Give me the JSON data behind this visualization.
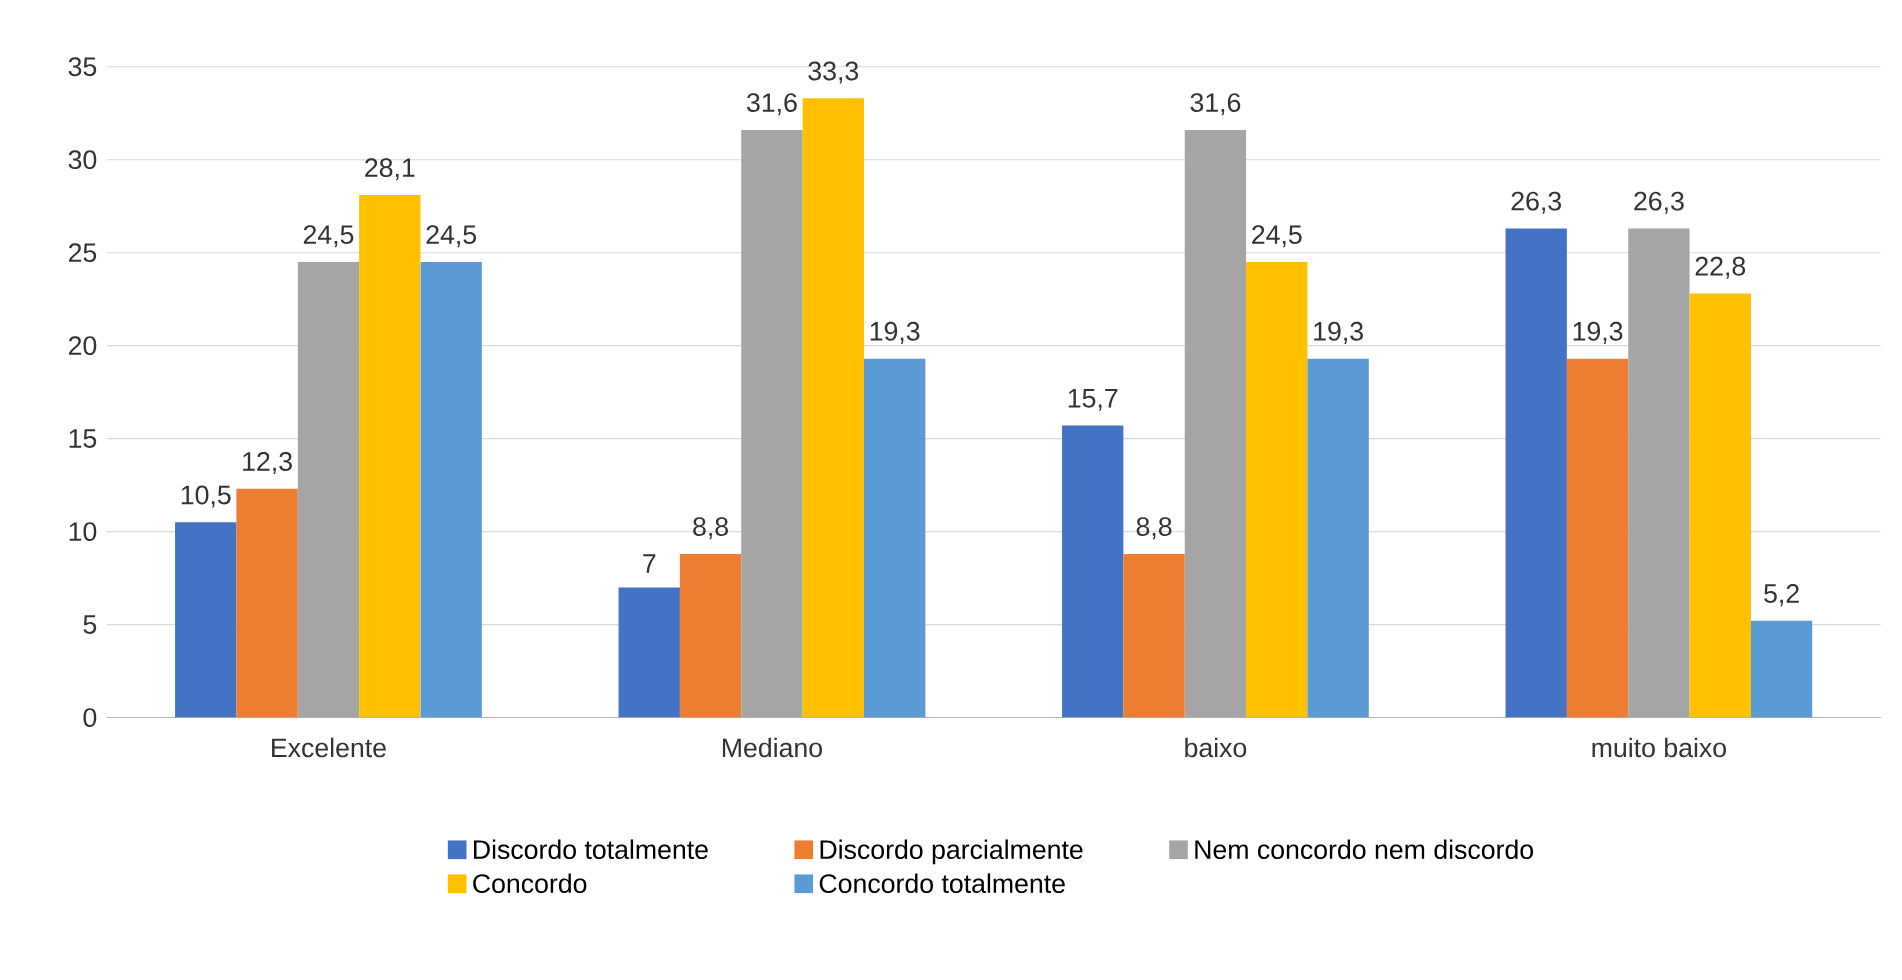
{
  "chart_data": {
    "type": "bar",
    "categories": [
      "Excelente",
      "Mediano",
      "baixo",
      "muito baixo"
    ],
    "series": [
      {
        "name": "Discordo totalmente",
        "color": "#4472c4",
        "values": [
          10.5,
          7,
          15.7,
          26.3
        ],
        "value_labels": [
          "10,5",
          "7",
          "15,7",
          "26,3"
        ]
      },
      {
        "name": "Discordo parcialmente",
        "color": "#ed7d31",
        "values": [
          12.3,
          8.8,
          8.8,
          19.3
        ],
        "value_labels": [
          "12,3",
          "8,8",
          "8,8",
          "19,3"
        ]
      },
      {
        "name": "Nem concordo nem discordo",
        "color": "#a5a5a5",
        "values": [
          24.5,
          31.6,
          31.6,
          26.3
        ],
        "value_labels": [
          "24,5",
          "31,6",
          "31,6",
          "26,3"
        ]
      },
      {
        "name": "Concordo",
        "color": "#ffc000",
        "values": [
          28.1,
          33.3,
          24.5,
          22.8
        ],
        "value_labels": [
          "28,1",
          "33,3",
          "24,5",
          "22,8"
        ]
      },
      {
        "name": "Concordo totalmente",
        "color": "#5b9bd5",
        "values": [
          24.5,
          19.3,
          19.3,
          5.2
        ],
        "value_labels": [
          "24,5",
          "19,3",
          "19,3",
          "5,2"
        ]
      }
    ],
    "ylim": [
      0,
      35
    ],
    "yticks": [
      0,
      5,
      10,
      15,
      20,
      25,
      30,
      35
    ],
    "grid": "y",
    "legend": "bottom"
  }
}
